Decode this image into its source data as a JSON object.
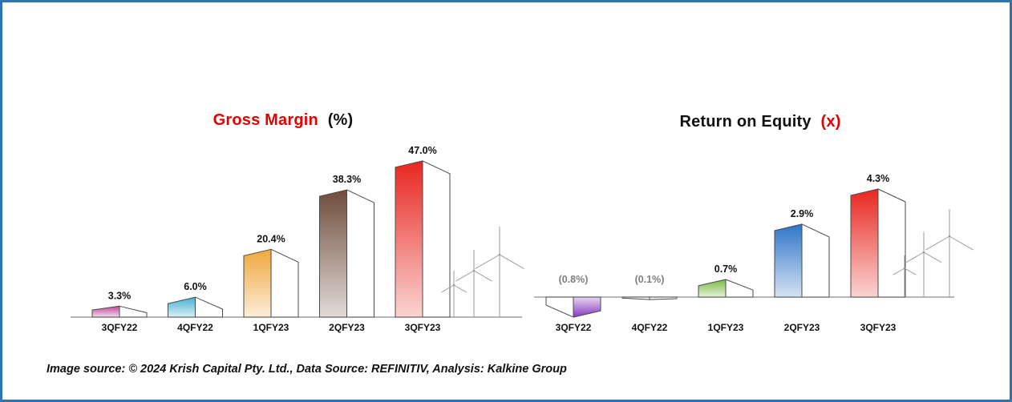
{
  "frame": {
    "border_color": "#2E74B5",
    "background": "#FFFFFF"
  },
  "footer": {
    "text": "Image source: © 2024 Krish Capital Pty. Ltd., Data Source: REFINITIV, Analysis: Kalkine Group"
  },
  "chart_data": [
    {
      "type": "bar",
      "title_main": "Gross Margin",
      "title_suffix": "(%)",
      "title_main_color": "#E60000",
      "title_suffix_color": "#111111",
      "categories": [
        "3QFY22",
        "4QFY22",
        "1QFY23",
        "2QFY23",
        "3QFY23"
      ],
      "values": [
        3.3,
        6.0,
        20.4,
        38.3,
        47.0
      ],
      "value_labels": [
        "3.3%",
        "6.0%",
        "20.4%",
        "38.3%",
        "47.0%"
      ],
      "value_label_colors": [
        "#111111",
        "#111111",
        "#111111",
        "#111111",
        "#111111"
      ],
      "bar_colors": [
        "#C2479C",
        "#45B0CF",
        "#EFA73E",
        "#6E4C3B",
        "#E8261F"
      ],
      "ylim": [
        0,
        50
      ],
      "grid": false,
      "legend": "none",
      "decoration": "wind-turbines"
    },
    {
      "type": "bar",
      "title_main": "Return on Equity",
      "title_suffix": "(x)",
      "title_main_color": "#111111",
      "title_suffix_color": "#E60000",
      "categories": [
        "3QFY22",
        "4QFY22",
        "1QFY23",
        "2QFY23",
        "3QFY23"
      ],
      "values": [
        -0.8,
        -0.1,
        0.7,
        2.9,
        4.3
      ],
      "value_labels": [
        "(0.8%)",
        "(0.1%)",
        "0.7%",
        "2.9%",
        "4.3%"
      ],
      "value_label_colors": [
        "#7F7F7F",
        "#7F7F7F",
        "#111111",
        "#111111",
        "#111111"
      ],
      "bar_colors": [
        "#8636BE",
        "#FFFFFF",
        "#76BC43",
        "#2E75C6",
        "#E8261F"
      ],
      "ylim": [
        -1,
        5
      ],
      "grid": false,
      "legend": "none",
      "decoration": "wind-turbines"
    }
  ]
}
